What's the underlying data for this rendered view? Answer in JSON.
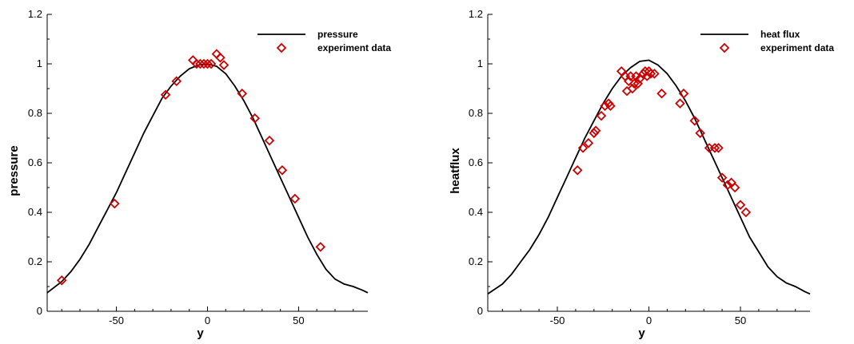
{
  "chart_data": [
    {
      "type": "line",
      "xlabel": "y",
      "ylabel": "pressure",
      "xlim": [
        -88,
        88
      ],
      "ylim": [
        0,
        1.2
      ],
      "xticks": [
        -50,
        0,
        50
      ],
      "xtick_labels": [
        "-50",
        "0",
        "50"
      ],
      "yticks": [
        0,
        0.2,
        0.4,
        0.6,
        0.8,
        1,
        1.2
      ],
      "ytick_labels": [
        "0",
        "0.2",
        "0.4",
        "0.6",
        "0.8",
        "1",
        "1.2"
      ],
      "grid": false,
      "legend_position": "top-right",
      "colors": {
        "line": "#000000",
        "marker": "#cc0000"
      },
      "series": [
        {
          "name": "pressure",
          "kind": "line",
          "x": [
            -88,
            -80,
            -75,
            -70,
            -65,
            -60,
            -55,
            -50,
            -45,
            -40,
            -35,
            -30,
            -25,
            -20,
            -15,
            -10,
            -5,
            0,
            5,
            10,
            15,
            20,
            25,
            30,
            35,
            40,
            45,
            50,
            55,
            60,
            65,
            70,
            75,
            80,
            85,
            88
          ],
          "y": [
            0.075,
            0.12,
            0.16,
            0.21,
            0.27,
            0.34,
            0.41,
            0.48,
            0.56,
            0.64,
            0.72,
            0.79,
            0.86,
            0.91,
            0.95,
            0.98,
            0.995,
            1.0,
            0.99,
            0.96,
            0.91,
            0.85,
            0.78,
            0.7,
            0.62,
            0.54,
            0.46,
            0.38,
            0.3,
            0.23,
            0.17,
            0.13,
            0.11,
            0.1,
            0.085,
            0.075
          ]
        },
        {
          "name": "experiment data",
          "kind": "marker",
          "x": [
            -80,
            -51,
            -23,
            -17,
            -8,
            -6,
            -4,
            -2,
            0,
            2,
            5,
            7,
            9,
            19,
            26,
            34,
            41,
            48,
            62
          ],
          "y": [
            0.125,
            0.435,
            0.875,
            0.93,
            1.015,
            1.0,
            1.0,
            1.0,
            1.0,
            1.0,
            1.04,
            1.025,
            0.995,
            0.88,
            0.78,
            0.69,
            0.57,
            0.455,
            0.26
          ]
        }
      ]
    },
    {
      "type": "line",
      "xlabel": "y",
      "ylabel": "heatflux",
      "xlim": [
        -88,
        88
      ],
      "ylim": [
        0,
        1.2
      ],
      "xticks": [
        -50,
        0,
        50
      ],
      "xtick_labels": [
        "-50",
        "0",
        "50"
      ],
      "yticks": [
        0,
        0.2,
        0.4,
        0.6,
        0.8,
        1,
        1.2
      ],
      "ytick_labels": [
        "0",
        "0.2",
        "0.4",
        "0.6",
        "0.8",
        "1",
        "1.2"
      ],
      "grid": false,
      "legend_position": "top-right",
      "colors": {
        "line": "#000000",
        "marker": "#cc0000"
      },
      "series": [
        {
          "name": "heat flux",
          "kind": "line",
          "x": [
            -88,
            -80,
            -75,
            -70,
            -65,
            -60,
            -55,
            -50,
            -45,
            -40,
            -35,
            -30,
            -25,
            -20,
            -15,
            -10,
            -5,
            0,
            5,
            10,
            15,
            20,
            25,
            30,
            35,
            40,
            45,
            50,
            55,
            60,
            65,
            70,
            75,
            80,
            85,
            88
          ],
          "y": [
            0.07,
            0.11,
            0.15,
            0.2,
            0.25,
            0.31,
            0.38,
            0.46,
            0.54,
            0.62,
            0.7,
            0.77,
            0.84,
            0.9,
            0.95,
            0.985,
            1.01,
            1.015,
            0.995,
            0.96,
            0.91,
            0.85,
            0.78,
            0.7,
            0.62,
            0.54,
            0.46,
            0.38,
            0.3,
            0.24,
            0.18,
            0.14,
            0.115,
            0.1,
            0.08,
            0.07
          ]
        },
        {
          "name": "experiment data",
          "kind": "marker",
          "x": [
            -39,
            -36,
            -33,
            -30,
            -29,
            -26,
            -24,
            -22,
            -21,
            -15,
            -13,
            -12,
            -11,
            -10,
            -9,
            -8,
            -7,
            -6,
            -5,
            -3,
            -2,
            -1,
            0,
            1,
            3,
            7,
            17,
            19,
            25,
            28,
            33,
            36,
            38,
            40,
            43,
            45,
            47,
            50,
            53
          ],
          "y": [
            0.57,
            0.66,
            0.68,
            0.72,
            0.73,
            0.79,
            0.83,
            0.84,
            0.83,
            0.97,
            0.95,
            0.89,
            0.93,
            0.95,
            0.9,
            0.92,
            0.95,
            0.92,
            0.94,
            0.96,
            0.97,
            0.95,
            0.97,
            0.96,
            0.96,
            0.88,
            0.84,
            0.88,
            0.77,
            0.72,
            0.66,
            0.66,
            0.66,
            0.54,
            0.51,
            0.52,
            0.5,
            0.43,
            0.4
          ]
        }
      ]
    }
  ]
}
